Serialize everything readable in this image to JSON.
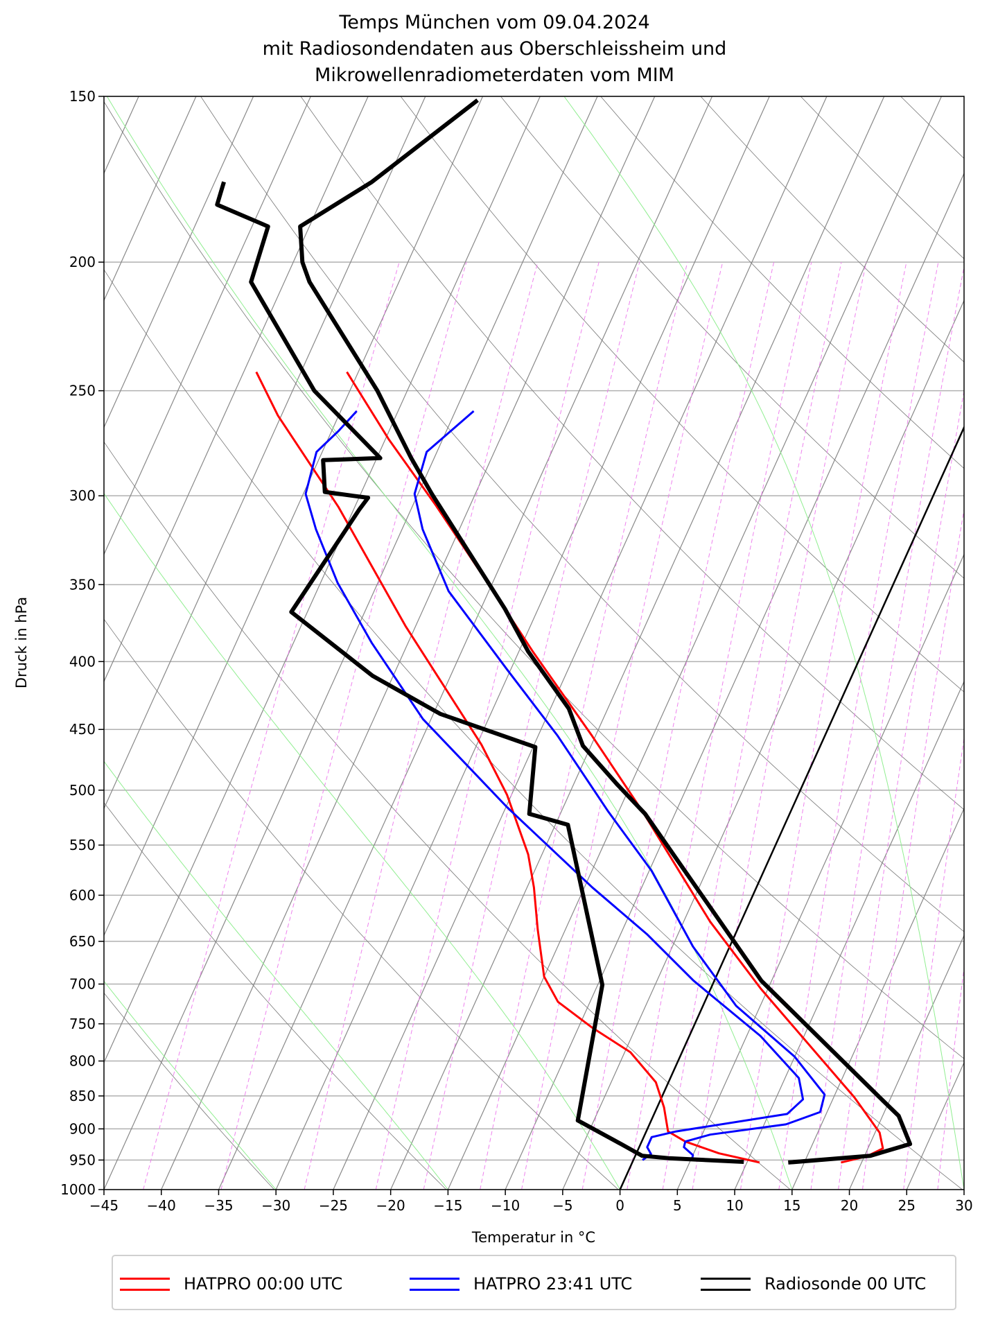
{
  "chart_data": {
    "type": "line",
    "subtype": "skew-T log-p diagram",
    "title": [
      "Temps München vom 09.04.2024",
      "mit Radiosondendaten aus Oberschleissheim und",
      "Mikrowellenradiometerdaten vom MIM"
    ],
    "xlabel": "Temperatur in °C",
    "ylabel": "Druck in hPa",
    "xlim": [
      -45,
      30
    ],
    "ylim": [
      1000,
      150
    ],
    "yscale": "log",
    "x_ticks": [
      -45,
      -40,
      -35,
      -30,
      -25,
      -20,
      -15,
      -10,
      -5,
      0,
      5,
      10,
      15,
      20,
      25,
      30
    ],
    "y_ticks": [
      150,
      200,
      250,
      300,
      350,
      400,
      450,
      500,
      550,
      600,
      650,
      700,
      750,
      800,
      850,
      900,
      950,
      1000
    ],
    "grid": true,
    "legend_position": "bottom",
    "background_lines": {
      "isotherms_color": "#888888",
      "dry_adiabats_color": "#777777",
      "moist_adiabats_color": "#90ee90",
      "mixing_ratio_color": "#ee82ee",
      "highlighted_isotherm_celsius": 0
    },
    "series": [
      {
        "name": "HATPRO 00:00 UTC",
        "color": "#ff0000",
        "curves": [
          [
            [
              242,
              -56.0
            ],
            [
              272,
              -49.7
            ],
            [
              305,
              -43.0
            ],
            [
              365,
              -32.9
            ],
            [
              393,
              -28.8
            ],
            [
              455,
              -20.3
            ],
            [
              519,
              -12.9
            ],
            [
              628,
              -2.7
            ],
            [
              706,
              4.4
            ],
            [
              852,
              16.8
            ],
            [
              906,
              20.4
            ],
            [
              931,
              21.3
            ],
            [
              944,
              20.2
            ],
            [
              954,
              18.2
            ]
          ],
          [
            [
              242,
              -63.9
            ],
            [
              261,
              -60.3
            ],
            [
              306,
              -51.4
            ],
            [
              376,
              -40.9
            ],
            [
              462,
              -29.6
            ],
            [
              504,
              -25.4
            ],
            [
              559,
              -21.2
            ],
            [
              592,
              -19.4
            ],
            [
              637,
              -17.4
            ],
            [
              691,
              -15.0
            ],
            [
              722,
              -12.8
            ],
            [
              755,
              -8.8
            ],
            [
              788,
              -4.5
            ],
            [
              830,
              -1.1
            ],
            [
              867,
              0.6
            ],
            [
              904,
              1.9
            ],
            [
              920,
              3.8
            ],
            [
              939,
              7.2
            ],
            [
              954,
              11.1
            ]
          ]
        ]
      },
      {
        "name": "HATPRO 23:41 UTC",
        "color": "#0000ff",
        "curves": [
          [
            [
              259,
              -43.4
            ],
            [
              278,
              -45.9
            ],
            [
              299,
              -45.3
            ],
            [
              318,
              -43.2
            ],
            [
              354,
              -38.5
            ],
            [
              405,
              -30.4
            ],
            [
              455,
              -23.3
            ],
            [
              519,
              -15.9
            ],
            [
              575,
              -9.8
            ],
            [
              656,
              -3.2
            ],
            [
              727,
              2.9
            ],
            [
              794,
              10.0
            ],
            [
              848,
              14.1
            ],
            [
              874,
              14.4
            ],
            [
              893,
              11.9
            ],
            [
              909,
              5.7
            ],
            [
              920,
              3.8
            ],
            [
              929,
              3.9
            ],
            [
              942,
              5.0
            ],
            [
              950,
              5.1
            ]
          ],
          [
            [
              259,
              -53.6
            ],
            [
              268,
              -54.4
            ],
            [
              278,
              -55.5
            ],
            [
              299,
              -54.8
            ],
            [
              318,
              -52.5
            ],
            [
              349,
              -48.5
            ],
            [
              387,
              -43.2
            ],
            [
              442,
              -35.7
            ],
            [
              515,
              -24.9
            ],
            [
              592,
              -14.3
            ],
            [
              642,
              -7.7
            ],
            [
              696,
              -1.8
            ],
            [
              766,
              6.2
            ],
            [
              824,
              11.2
            ],
            [
              855,
              12.4
            ],
            [
              877,
              11.6
            ],
            [
              904,
              2.6
            ],
            [
              913,
              0.7
            ],
            [
              929,
              0.7
            ],
            [
              940,
              1.3
            ],
            [
              950,
              0.8
            ]
          ]
        ]
      },
      {
        "name": "Radiosonde 00 UTC",
        "color": "#000000",
        "curves": [
          [
            [
              151,
              -55.3
            ],
            [
              174,
              -61.3
            ],
            [
              188,
              -65.8
            ],
            [
              200,
              -64.2
            ],
            [
              207,
              -62.8
            ],
            [
              250,
              -52.6
            ],
            [
              281,
              -47.0
            ],
            [
              299,
              -43.8
            ],
            [
              365,
              -32.9
            ],
            [
              393,
              -29.2
            ],
            [
              434,
              -23.4
            ],
            [
              463,
              -20.7
            ],
            [
              495,
              -16.2
            ],
            [
              521,
              -12.6
            ],
            [
              696,
              4.1
            ],
            [
              852,
              19.0
            ],
            [
              880,
              21.4
            ],
            [
              924,
              23.5
            ],
            [
              943,
              20.5
            ],
            [
              954,
              13.6
            ]
          ],
          [
            [
              174,
              -74.2
            ],
            [
              181,
              -73.9
            ],
            [
              188,
              -68.6
            ],
            [
              207,
              -67.9
            ],
            [
              250,
              -58.1
            ],
            [
              281,
              -49.7
            ],
            [
              282,
              -54.6
            ],
            [
              298,
              -53.2
            ],
            [
              300,
              -50.6
            ],
            [
              301,
              -49.2
            ],
            [
              307,
              -49.5
            ],
            [
              367,
              -51.4
            ],
            [
              410,
              -41.8
            ],
            [
              438,
              -34.4
            ],
            [
              464,
              -24.8
            ],
            [
              521,
              -22.7
            ],
            [
              531,
              -18.9
            ],
            [
              701,
              -9.6
            ],
            [
              887,
              -6.4
            ],
            [
              924,
              -1.7
            ],
            [
              943,
              0.6
            ],
            [
              947,
              3.0
            ],
            [
              953,
              9.7
            ]
          ]
        ]
      }
    ]
  }
}
